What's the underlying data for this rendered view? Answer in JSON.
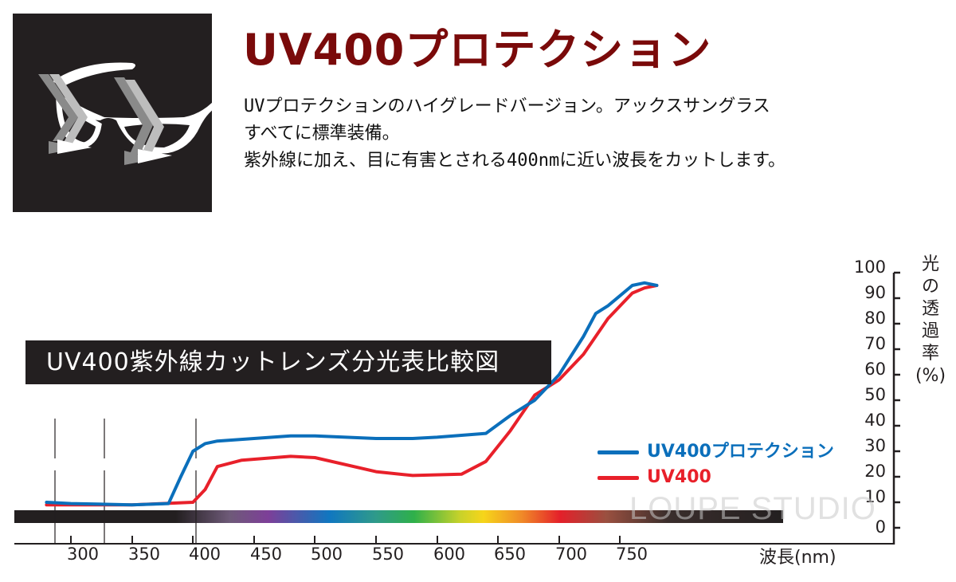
{
  "header": {
    "title": "UV400プロテクション",
    "description_lines": [
      "UVプロテクションのハイグレードバージョン。アックスサングラス",
      "すべてに標準装備。",
      "紫外線に加え、目に有害とされる400nmに近い波長をカットします。"
    ]
  },
  "logo": {
    "icon": "sunglasses-uv-arrows-icon"
  },
  "chart_banner": "UV400紫外線カットレンズ分光表比較図",
  "y_axis_label_chars": [
    "光",
    "の",
    "透",
    "過",
    "率",
    "(%)"
  ],
  "x_axis_label": "波長(nm)",
  "legend": [
    {
      "label": "UV400プロテクション",
      "color": "#0b6fbb"
    },
    {
      "label": "UV400",
      "color": "#e8202a"
    }
  ],
  "watermark": "LOUPE STUDIO",
  "colors": {
    "title": "#7a0a0a",
    "blue": "#0b6fbb",
    "red": "#e8202a",
    "dark": "#231f20"
  },
  "chart_data": {
    "type": "line",
    "title": "UV400紫外線カットレンズ分光表比較図",
    "xlabel": "波長(nm)",
    "ylabel": "光の透過率(%)",
    "xlim": [
      270,
      790
    ],
    "ylim": [
      0,
      100
    ],
    "x_ticks": [
      300,
      350,
      400,
      450,
      500,
      550,
      600,
      650,
      700,
      750
    ],
    "y_ticks": [
      0,
      10,
      20,
      30,
      40,
      50,
      60,
      70,
      80,
      90,
      100
    ],
    "grid": false,
    "legend_position": "center-right",
    "reference_lines_nm": [
      280,
      315,
      380
    ],
    "series": [
      {
        "name": "UV400プロテクション",
        "color": "#0b6fbb",
        "x": [
          280,
          300,
          350,
          380,
          390,
          400,
          410,
          420,
          450,
          480,
          500,
          550,
          580,
          600,
          640,
          660,
          680,
          700,
          720,
          730,
          740,
          750,
          760,
          770,
          780
        ],
        "y": [
          10,
          9.5,
          9,
          9.5,
          20,
          30,
          33,
          34,
          35,
          36,
          36,
          35,
          35,
          35.5,
          37,
          44,
          50,
          60,
          75,
          84,
          87,
          91,
          95,
          96,
          95
        ]
      },
      {
        "name": "UV400",
        "color": "#e8202a",
        "x": [
          280,
          300,
          350,
          400,
          410,
          420,
          440,
          480,
          500,
          550,
          580,
          620,
          640,
          660,
          680,
          690,
          700,
          720,
          740,
          750,
          760,
          770,
          780
        ],
        "y": [
          9,
          9,
          9,
          10,
          15,
          24,
          26.5,
          28,
          27.5,
          22,
          20.5,
          21,
          26,
          38,
          52,
          55,
          58,
          68,
          82,
          87,
          92,
          94,
          95
        ]
      }
    ],
    "spectrum_bar": {
      "from_nm": 270,
      "to_nm": 790,
      "visible_range_nm": [
        380,
        780
      ]
    }
  }
}
